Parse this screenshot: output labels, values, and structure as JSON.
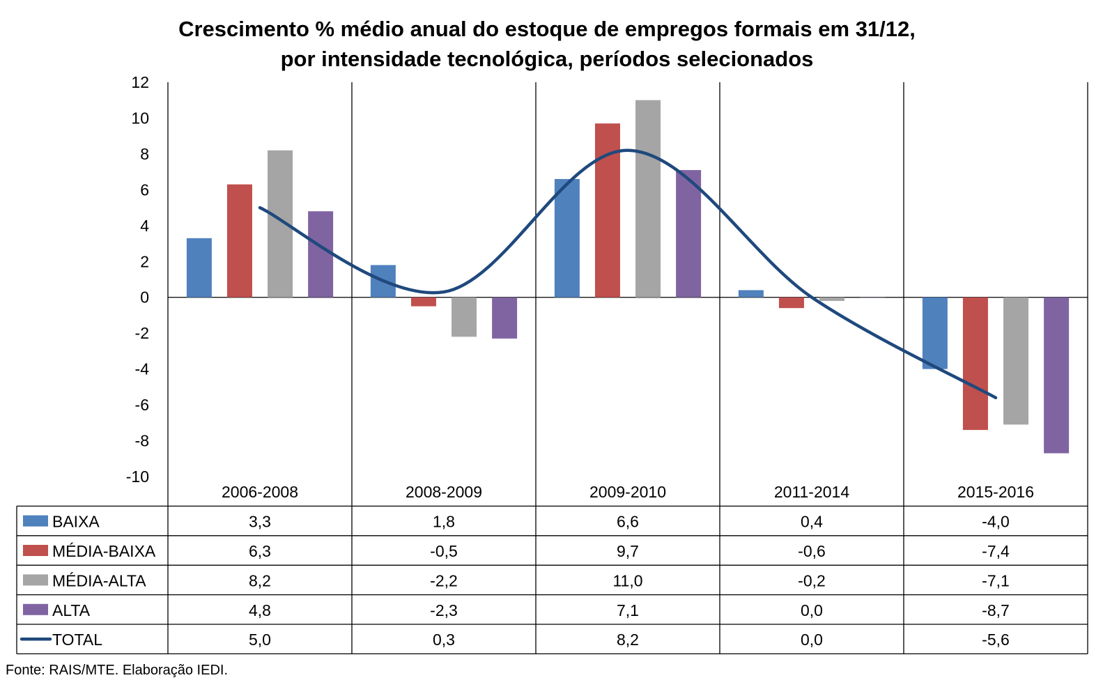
{
  "chart_data": {
    "type": "bar",
    "title": "Crescimento % médio anual do estoque de empregos formais em 31/12,",
    "subtitle": "por intensidade tecnológica, períodos selecionados",
    "categories": [
      "2006-2008",
      "2008-2009",
      "2009-2010",
      "2011-2014",
      "2015-2016"
    ],
    "ylim": [
      -10,
      12
    ],
    "yticks": [
      "12",
      "10",
      "8",
      "6",
      "4",
      "2",
      "0",
      "-2",
      "-4",
      "-6",
      "-8",
      "-10"
    ],
    "grid": "vertical category separators",
    "legend": "data table below chart",
    "series": [
      {
        "name": "BAIXA",
        "type": "bar",
        "color": "#4F81BD",
        "values": [
          3.3,
          1.8,
          6.6,
          0.4,
          -4.0
        ],
        "labels": [
          "3,3",
          "1,8",
          "6,6",
          "0,4",
          "-4,0"
        ]
      },
      {
        "name": "MÉDIA-BAIXA",
        "type": "bar",
        "color": "#C0504D",
        "values": [
          6.3,
          -0.5,
          9.7,
          -0.6,
          -7.4
        ],
        "labels": [
          "6,3",
          "-0,5",
          "9,7",
          "-0,6",
          "-7,4"
        ]
      },
      {
        "name": "MÉDIA-ALTA",
        "type": "bar",
        "color": "#A5A5A5",
        "values": [
          8.2,
          -2.2,
          11.0,
          -0.2,
          -7.1
        ],
        "labels": [
          "8,2",
          "-2,2",
          "11,0",
          "-0,2",
          "-7,1"
        ]
      },
      {
        "name": "ALTA",
        "type": "bar",
        "color": "#8064A2",
        "values": [
          4.8,
          -2.3,
          7.1,
          0.0,
          -8.7
        ],
        "labels": [
          "4,8",
          "-2,3",
          "7,1",
          "0,0",
          "-8,7"
        ]
      },
      {
        "name": "TOTAL",
        "type": "line",
        "color": "#1F497D",
        "values": [
          5.0,
          0.3,
          8.2,
          0.0,
          -5.6
        ],
        "labels": [
          "5,0",
          "0,3",
          "8,2",
          "0,0",
          "-5,6"
        ]
      }
    ]
  },
  "source": "Fonte: RAIS/MTE. Elaboração IEDI."
}
